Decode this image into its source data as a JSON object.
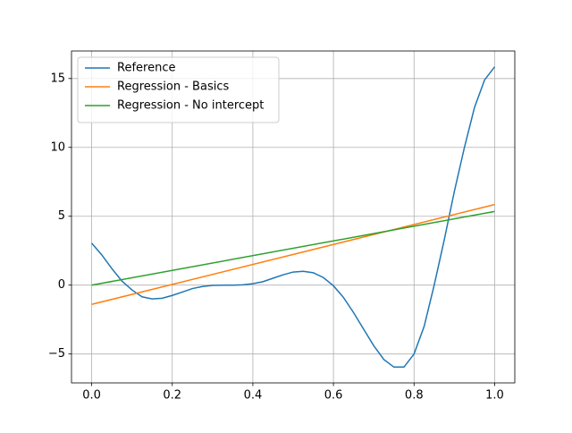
{
  "chart_data": {
    "type": "line",
    "xlim": [
      -0.05,
      1.05
    ],
    "ylim": [
      -7.1,
      17.0
    ],
    "xticks": [
      {
        "value": 0,
        "label": "0.0"
      },
      0.2,
      0.4,
      0.6,
      0.8,
      {
        "value": 1,
        "label": "1.0"
      }
    ],
    "yticks": [
      {
        "value": -5,
        "label": "−5"
      },
      0,
      5,
      10,
      15
    ],
    "grid": true,
    "legend": "upper left",
    "series": [
      {
        "name": "Reference",
        "color": "#1f77b4",
        "x": [
          0,
          0.025,
          0.05,
          0.075,
          0.1,
          0.125,
          0.15,
          0.175,
          0.2,
          0.225,
          0.25,
          0.275,
          0.3,
          0.325,
          0.35,
          0.375,
          0.4,
          0.425,
          0.45,
          0.475,
          0.5,
          0.525,
          0.55,
          0.575,
          0.6,
          0.625,
          0.65,
          0.675,
          0.7,
          0.725,
          0.75,
          0.775,
          0.8,
          0.825,
          0.85,
          0.875,
          0.9,
          0.925,
          0.95,
          0.975,
          1
        ],
        "values": [
          3.05,
          2.2,
          1.2,
          0.3,
          -0.35,
          -0.85,
          -1.0,
          -0.95,
          -0.75,
          -0.5,
          -0.25,
          -0.1,
          -0.02,
          0.0,
          0.0,
          0.02,
          0.1,
          0.25,
          0.5,
          0.75,
          0.95,
          1.0,
          0.9,
          0.55,
          -0.05,
          -0.9,
          -2.0,
          -3.2,
          -4.4,
          -5.4,
          -5.95,
          -5.95,
          -5.0,
          -3.0,
          0.0,
          3.3,
          6.8,
          10.0,
          12.9,
          14.9,
          15.85
        ]
      },
      {
        "name": "Regression - Basics",
        "color": "#ff7f0e",
        "x": [
          0,
          1
        ],
        "values": [
          -1.4,
          5.85
        ]
      },
      {
        "name": "Regression - No intercept",
        "color": "#2ca02c",
        "x": [
          0,
          1
        ],
        "values": [
          0,
          5.35
        ]
      }
    ]
  }
}
